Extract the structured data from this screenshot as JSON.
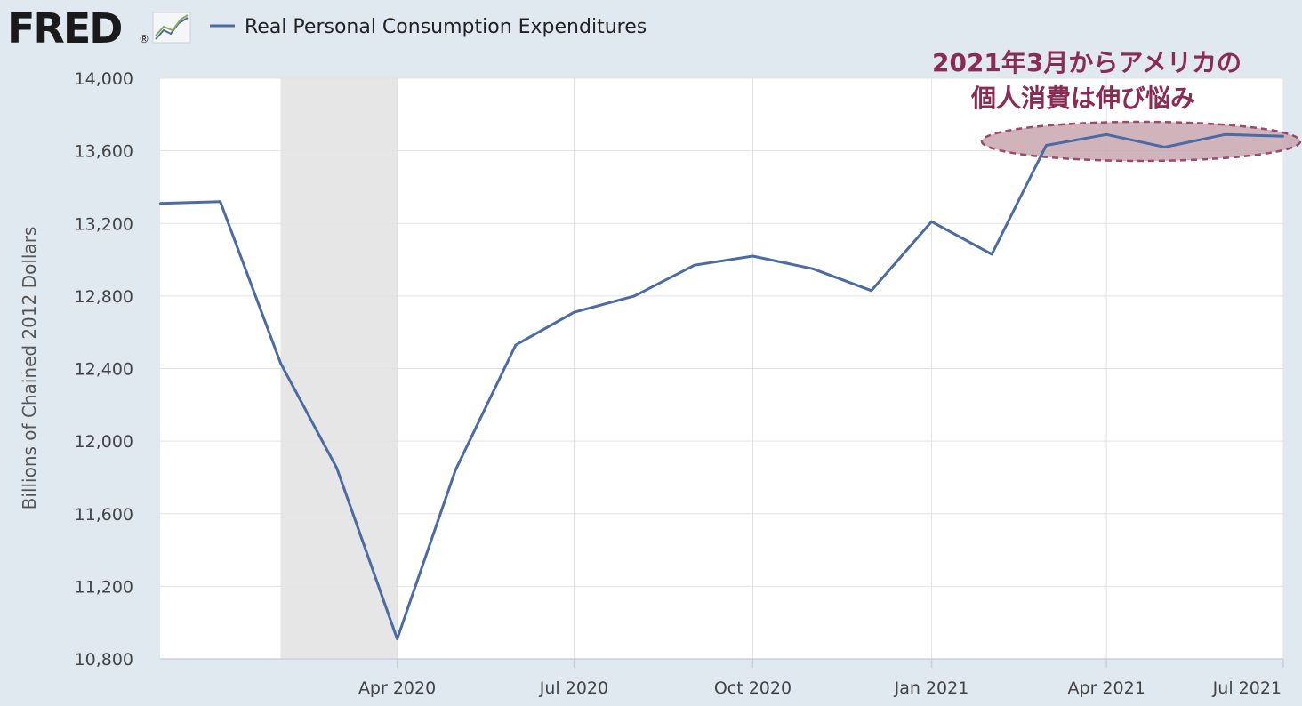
{
  "brand": {
    "logo_text": "FRED",
    "registered_mark": "®",
    "icon": "line-chart-icon"
  },
  "legend": {
    "series_name": "Real Personal Consumption Expenditures",
    "color": "#4a6ba4"
  },
  "annotation": {
    "line1": "2021年3月からアメリカの",
    "line2": "個人消費は伸び悩み",
    "text_color": "#8b2a52",
    "ellipse_fill": "#c9a7b0",
    "ellipse_stroke": "#8b2a52"
  },
  "chart_data": {
    "type": "line",
    "title": "",
    "xlabel": "",
    "ylabel": "Billions of Chained 2012 Dollars",
    "ylim": [
      10800,
      14000
    ],
    "y_ticks": [
      10800,
      11200,
      11600,
      12000,
      12400,
      12800,
      13200,
      13600,
      14000
    ],
    "y_tick_labels": [
      "10,800",
      "11,200",
      "11,600",
      "12,000",
      "12,400",
      "12,800",
      "13,200",
      "13,600",
      "14,000"
    ],
    "x_range": [
      "2019-12-01",
      "2021-07-01"
    ],
    "x_ticks": [
      "2020-04-01",
      "2020-07-01",
      "2020-10-01",
      "2021-01-01",
      "2021-04-01",
      "2021-07-01"
    ],
    "x_tick_labels": [
      "Apr 2020",
      "Jul 2020",
      "Oct 2020",
      "Jan 2021",
      "Apr 2021",
      "Jul 2021"
    ],
    "recession": {
      "start": "2020-02-01",
      "end": "2020-04-01",
      "color": "#e6e6e6"
    },
    "grid": true,
    "series": [
      {
        "name": "Real Personal Consumption Expenditures",
        "color": "#4a6ba4",
        "x": [
          "2019-12-01",
          "2020-01-01",
          "2020-02-01",
          "2020-03-01",
          "2020-04-01",
          "2020-05-01",
          "2020-06-01",
          "2020-07-01",
          "2020-08-01",
          "2020-09-01",
          "2020-10-01",
          "2020-11-01",
          "2020-12-01",
          "2021-01-01",
          "2021-02-01",
          "2021-03-01",
          "2021-04-01",
          "2021-05-01",
          "2021-06-01",
          "2021-07-01"
        ],
        "values": [
          13310,
          13320,
          12430,
          11850,
          10910,
          11840,
          12530,
          12710,
          12800,
          12970,
          13020,
          12950,
          12830,
          13210,
          13030,
          13630,
          13690,
          13620,
          13690,
          13680
        ]
      }
    ]
  }
}
